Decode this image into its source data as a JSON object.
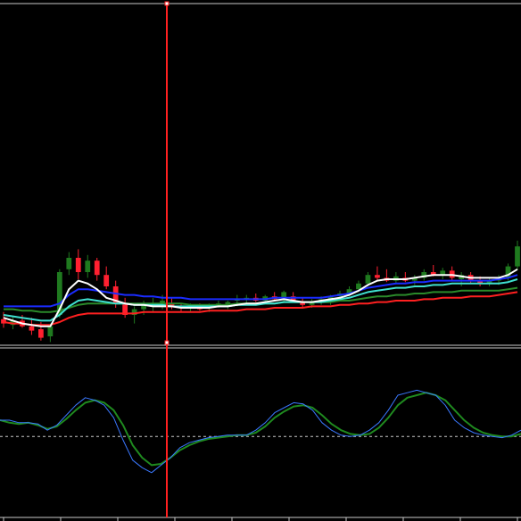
{
  "colors": {
    "background": "#000000",
    "panel_border": "#c8c8c8",
    "cursor_line": "#ff2020",
    "bull_candle": "#1f7a1f",
    "bear_candle": "#ff2030",
    "ma_white": "#ffffff",
    "ma_blue": "#1a2cff",
    "ma_cyan": "#3fe0d0",
    "ma_green": "#2a8a2a",
    "ma_red": "#ff2020",
    "osc_main": "#3a78ff",
    "osc_signal": "#1f8a1f",
    "osc_level": "#c8c8c8"
  },
  "chart_data": [
    {
      "type": "candlestick",
      "title": "",
      "xlabel": "",
      "ylabel": "",
      "ylim": [
        0,
        100
      ],
      "grid": false,
      "legend": "none",
      "candles": [
        {
          "o": 17,
          "h": 22,
          "l": 11,
          "c": 14
        },
        {
          "o": 13,
          "h": 19,
          "l": 10,
          "c": 16
        },
        {
          "o": 16,
          "h": 20,
          "l": 11,
          "c": 12
        },
        {
          "o": 12,
          "h": 18,
          "l": 6,
          "c": 9
        },
        {
          "o": 10,
          "h": 15,
          "l": 2,
          "c": 4
        },
        {
          "o": 5,
          "h": 14,
          "l": 1,
          "c": 12
        },
        {
          "o": 20,
          "h": 52,
          "l": 18,
          "c": 50
        },
        {
          "o": 52,
          "h": 64,
          "l": 48,
          "c": 60
        },
        {
          "o": 60,
          "h": 66,
          "l": 45,
          "c": 50
        },
        {
          "o": 50,
          "h": 62,
          "l": 46,
          "c": 58
        },
        {
          "o": 58,
          "h": 60,
          "l": 44,
          "c": 48
        },
        {
          "o": 48,
          "h": 54,
          "l": 38,
          "c": 40
        },
        {
          "o": 40,
          "h": 44,
          "l": 25,
          "c": 28
        },
        {
          "o": 28,
          "h": 32,
          "l": 18,
          "c": 20
        },
        {
          "o": 20,
          "h": 26,
          "l": 14,
          "c": 24
        },
        {
          "o": 24,
          "h": 30,
          "l": 20,
          "c": 27
        },
        {
          "o": 26,
          "h": 32,
          "l": 22,
          "c": 28
        },
        {
          "o": 28,
          "h": 34,
          "l": 24,
          "c": 30
        },
        {
          "o": 28,
          "h": 32,
          "l": 24,
          "c": 26
        },
        {
          "o": 26,
          "h": 28,
          "l": 22,
          "c": 25
        },
        {
          "o": 25,
          "h": 28,
          "l": 22,
          "c": 26
        },
        {
          "o": 26,
          "h": 28,
          "l": 23,
          "c": 24
        },
        {
          "o": 25,
          "h": 28,
          "l": 22,
          "c": 27
        },
        {
          "o": 27,
          "h": 30,
          "l": 25,
          "c": 28
        },
        {
          "o": 26,
          "h": 30,
          "l": 24,
          "c": 29
        },
        {
          "o": 30,
          "h": 34,
          "l": 26,
          "c": 31
        },
        {
          "o": 31,
          "h": 34,
          "l": 28,
          "c": 32
        },
        {
          "o": 32,
          "h": 35,
          "l": 29,
          "c": 30
        },
        {
          "o": 30,
          "h": 34,
          "l": 28,
          "c": 33
        },
        {
          "o": 33,
          "h": 36,
          "l": 30,
          "c": 31
        },
        {
          "o": 31,
          "h": 37,
          "l": 29,
          "c": 36
        },
        {
          "o": 33,
          "h": 36,
          "l": 29,
          "c": 30
        },
        {
          "o": 29,
          "h": 32,
          "l": 25,
          "c": 27
        },
        {
          "o": 27,
          "h": 31,
          "l": 25,
          "c": 29
        },
        {
          "o": 29,
          "h": 33,
          "l": 27,
          "c": 31
        },
        {
          "o": 30,
          "h": 34,
          "l": 27,
          "c": 33
        },
        {
          "o": 33,
          "h": 37,
          "l": 31,
          "c": 35
        },
        {
          "o": 35,
          "h": 40,
          "l": 33,
          "c": 38
        },
        {
          "o": 38,
          "h": 44,
          "l": 36,
          "c": 42
        },
        {
          "o": 42,
          "h": 50,
          "l": 40,
          "c": 48
        },
        {
          "o": 48,
          "h": 54,
          "l": 44,
          "c": 46
        },
        {
          "o": 46,
          "h": 52,
          "l": 43,
          "c": 44
        },
        {
          "o": 44,
          "h": 50,
          "l": 42,
          "c": 47
        },
        {
          "o": 46,
          "h": 50,
          "l": 43,
          "c": 44
        },
        {
          "o": 44,
          "h": 48,
          "l": 41,
          "c": 46
        },
        {
          "o": 46,
          "h": 52,
          "l": 44,
          "c": 50
        },
        {
          "o": 50,
          "h": 55,
          "l": 47,
          "c": 48
        },
        {
          "o": 48,
          "h": 53,
          "l": 45,
          "c": 51
        },
        {
          "o": 51,
          "h": 54,
          "l": 44,
          "c": 46
        },
        {
          "o": 45,
          "h": 50,
          "l": 40,
          "c": 48
        },
        {
          "o": 48,
          "h": 50,
          "l": 42,
          "c": 44
        },
        {
          "o": 44,
          "h": 47,
          "l": 40,
          "c": 42
        },
        {
          "o": 42,
          "h": 46,
          "l": 40,
          "c": 44
        },
        {
          "o": 44,
          "h": 48,
          "l": 41,
          "c": 46
        },
        {
          "o": 46,
          "h": 56,
          "l": 44,
          "c": 54
        },
        {
          "o": 54,
          "h": 72,
          "l": 52,
          "c": 68
        }
      ],
      "moving_averages": [
        {
          "color_key": "ma_white",
          "values": [
            18,
            16,
            14,
            13,
            12,
            12,
            24,
            38,
            44,
            42,
            38,
            32,
            30,
            28,
            27,
            27,
            26,
            26,
            26,
            25,
            25,
            25,
            25,
            26,
            26,
            27,
            28,
            28,
            29,
            30,
            31,
            30,
            29,
            29,
            30,
            31,
            32,
            34,
            37,
            41,
            44,
            45,
            45,
            45,
            46,
            47,
            48,
            48,
            48,
            47,
            46,
            46,
            46,
            46,
            48,
            52
          ]
        },
        {
          "color_key": "ma_blue",
          "values": [
            26,
            26,
            26,
            26,
            26,
            26,
            28,
            34,
            38,
            38,
            37,
            36,
            35,
            34,
            34,
            33,
            33,
            32,
            32,
            32,
            31,
            31,
            31,
            31,
            31,
            31,
            31,
            31,
            31,
            32,
            32,
            32,
            32,
            32,
            32,
            33,
            34,
            35,
            37,
            39,
            40,
            41,
            42,
            42,
            43,
            43,
            44,
            44,
            44,
            44,
            44,
            44,
            44,
            45,
            46,
            48
          ]
        },
        {
          "color_key": "ma_cyan",
          "values": [
            20,
            19,
            18,
            17,
            16,
            16,
            20,
            26,
            30,
            31,
            30,
            29,
            28,
            28,
            27,
            27,
            27,
            27,
            26,
            26,
            26,
            26,
            26,
            26,
            26,
            27,
            27,
            27,
            28,
            28,
            29,
            29,
            29,
            29,
            29,
            30,
            31,
            32,
            34,
            36,
            37,
            38,
            39,
            39,
            40,
            40,
            41,
            41,
            42,
            42,
            42,
            42,
            42,
            42,
            43,
            45
          ]
        },
        {
          "color_key": "ma_green",
          "values": [
            24,
            24,
            23,
            23,
            22,
            22,
            23,
            25,
            27,
            28,
            28,
            28,
            28,
            28,
            28,
            28,
            28,
            28,
            28,
            28,
            27,
            27,
            27,
            27,
            27,
            28,
            28,
            28,
            28,
            28,
            29,
            29,
            29,
            29,
            29,
            29,
            30,
            30,
            31,
            32,
            33,
            33,
            34,
            34,
            35,
            35,
            36,
            36,
            36,
            37,
            37,
            37,
            37,
            37,
            38,
            39
          ]
        },
        {
          "color_key": "ma_red",
          "values": [
            15,
            14,
            14,
            13,
            13,
            13,
            15,
            18,
            20,
            21,
            21,
            21,
            21,
            21,
            21,
            22,
            22,
            22,
            22,
            22,
            22,
            22,
            23,
            23,
            23,
            23,
            24,
            24,
            24,
            25,
            25,
            25,
            25,
            26,
            26,
            26,
            27,
            27,
            28,
            28,
            29,
            29,
            30,
            30,
            30,
            31,
            31,
            32,
            32,
            32,
            33,
            33,
            33,
            34,
            35,
            36
          ]
        }
      ]
    },
    {
      "type": "line",
      "title": "",
      "xlabel": "",
      "ylabel": "",
      "ylim": [
        0,
        100
      ],
      "grid": false,
      "legend": "none",
      "level": 47,
      "main": [
        60,
        60,
        58,
        58,
        57,
        52,
        56,
        64,
        72,
        78,
        76,
        72,
        62,
        44,
        28,
        22,
        18,
        24,
        30,
        38,
        42,
        44,
        46,
        47,
        48,
        48,
        48,
        52,
        58,
        66,
        70,
        74,
        73,
        68,
        58,
        52,
        48,
        47,
        48,
        52,
        58,
        68,
        80,
        82,
        84,
        82,
        80,
        72,
        60,
        54,
        50,
        48,
        47,
        46,
        48,
        52
      ],
      "signal": [
        60,
        58,
        57,
        58,
        56,
        53,
        55,
        61,
        68,
        74,
        76,
        74,
        68,
        56,
        40,
        30,
        24,
        25,
        30,
        36,
        40,
        43,
        45,
        46,
        47,
        48,
        48,
        50,
        55,
        62,
        67,
        71,
        72,
        70,
        64,
        57,
        52,
        49,
        48,
        49,
        54,
        62,
        72,
        78,
        80,
        82,
        80,
        76,
        68,
        60,
        54,
        50,
        48,
        47,
        47,
        49
      ]
    }
  ]
}
